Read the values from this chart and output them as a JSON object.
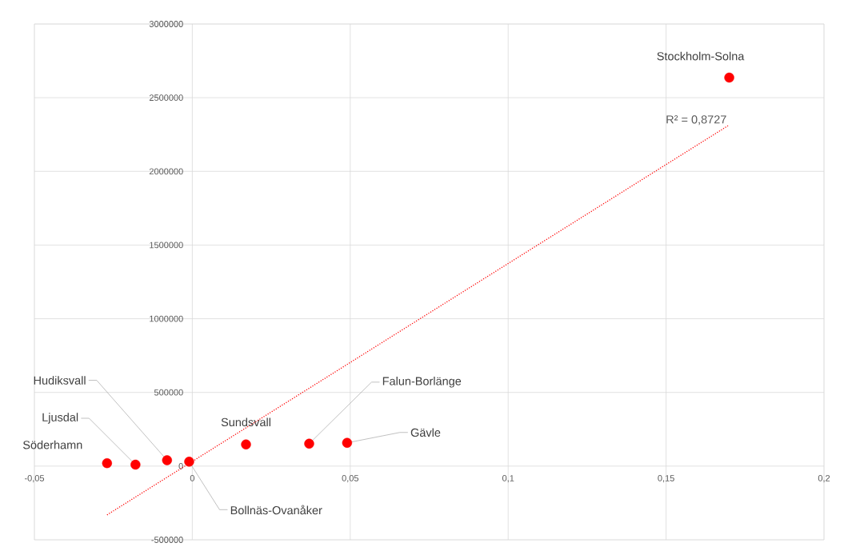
{
  "chart_data": {
    "type": "scatter",
    "xlim": [
      -0.05,
      0.2
    ],
    "ylim": [
      -500000,
      3000000
    ],
    "xticks": [
      {
        "value": -0.05,
        "label": "-0,05"
      },
      {
        "value": 0,
        "label": "0"
      },
      {
        "value": 0.05,
        "label": "0,05"
      },
      {
        "value": 0.1,
        "label": "0,1"
      },
      {
        "value": 0.15,
        "label": "0,15"
      },
      {
        "value": 0.2,
        "label": "0,2"
      }
    ],
    "yticks": [
      -500000,
      0,
      500000,
      1000000,
      1500000,
      2000000,
      2500000,
      3000000
    ],
    "grid": true,
    "series": [
      {
        "color": "#ff0000",
        "marker": "circle",
        "x": [
          -0.027,
          -0.018,
          -0.008,
          -0.001,
          0.017,
          0.037,
          0.049,
          0.17
        ],
        "values": [
          20000,
          10000,
          40000,
          30000,
          147000,
          152000,
          158000,
          2636000
        ]
      },
      {
        "type": "line",
        "color": "#ff0000",
        "line_style": "dotted",
        "marker": "none",
        "x": [
          -0.027,
          0.17
        ],
        "values": [
          -331000,
          2315000
        ]
      }
    ],
    "annotations": [
      {
        "text": "Söderhamn",
        "x": -0.027,
        "y": 20000
      },
      {
        "text": "Ljusdal",
        "x": -0.018,
        "y": 10000
      },
      {
        "text": "Hudiksvall",
        "x": -0.008,
        "y": 40000
      },
      {
        "text": "Bollnäs-Ovanåker",
        "x": -0.001,
        "y": 30000
      },
      {
        "text": "Sundsvall",
        "x": 0.017,
        "y": 147000
      },
      {
        "text": "Falun-Borlänge",
        "x": 0.037,
        "y": 152000
      },
      {
        "text": "Gävle",
        "x": 0.049,
        "y": 158000
      },
      {
        "text": "Stockholm-Solna",
        "x": 0.17,
        "y": 2636000
      },
      "R² = 0,8727"
    ]
  }
}
